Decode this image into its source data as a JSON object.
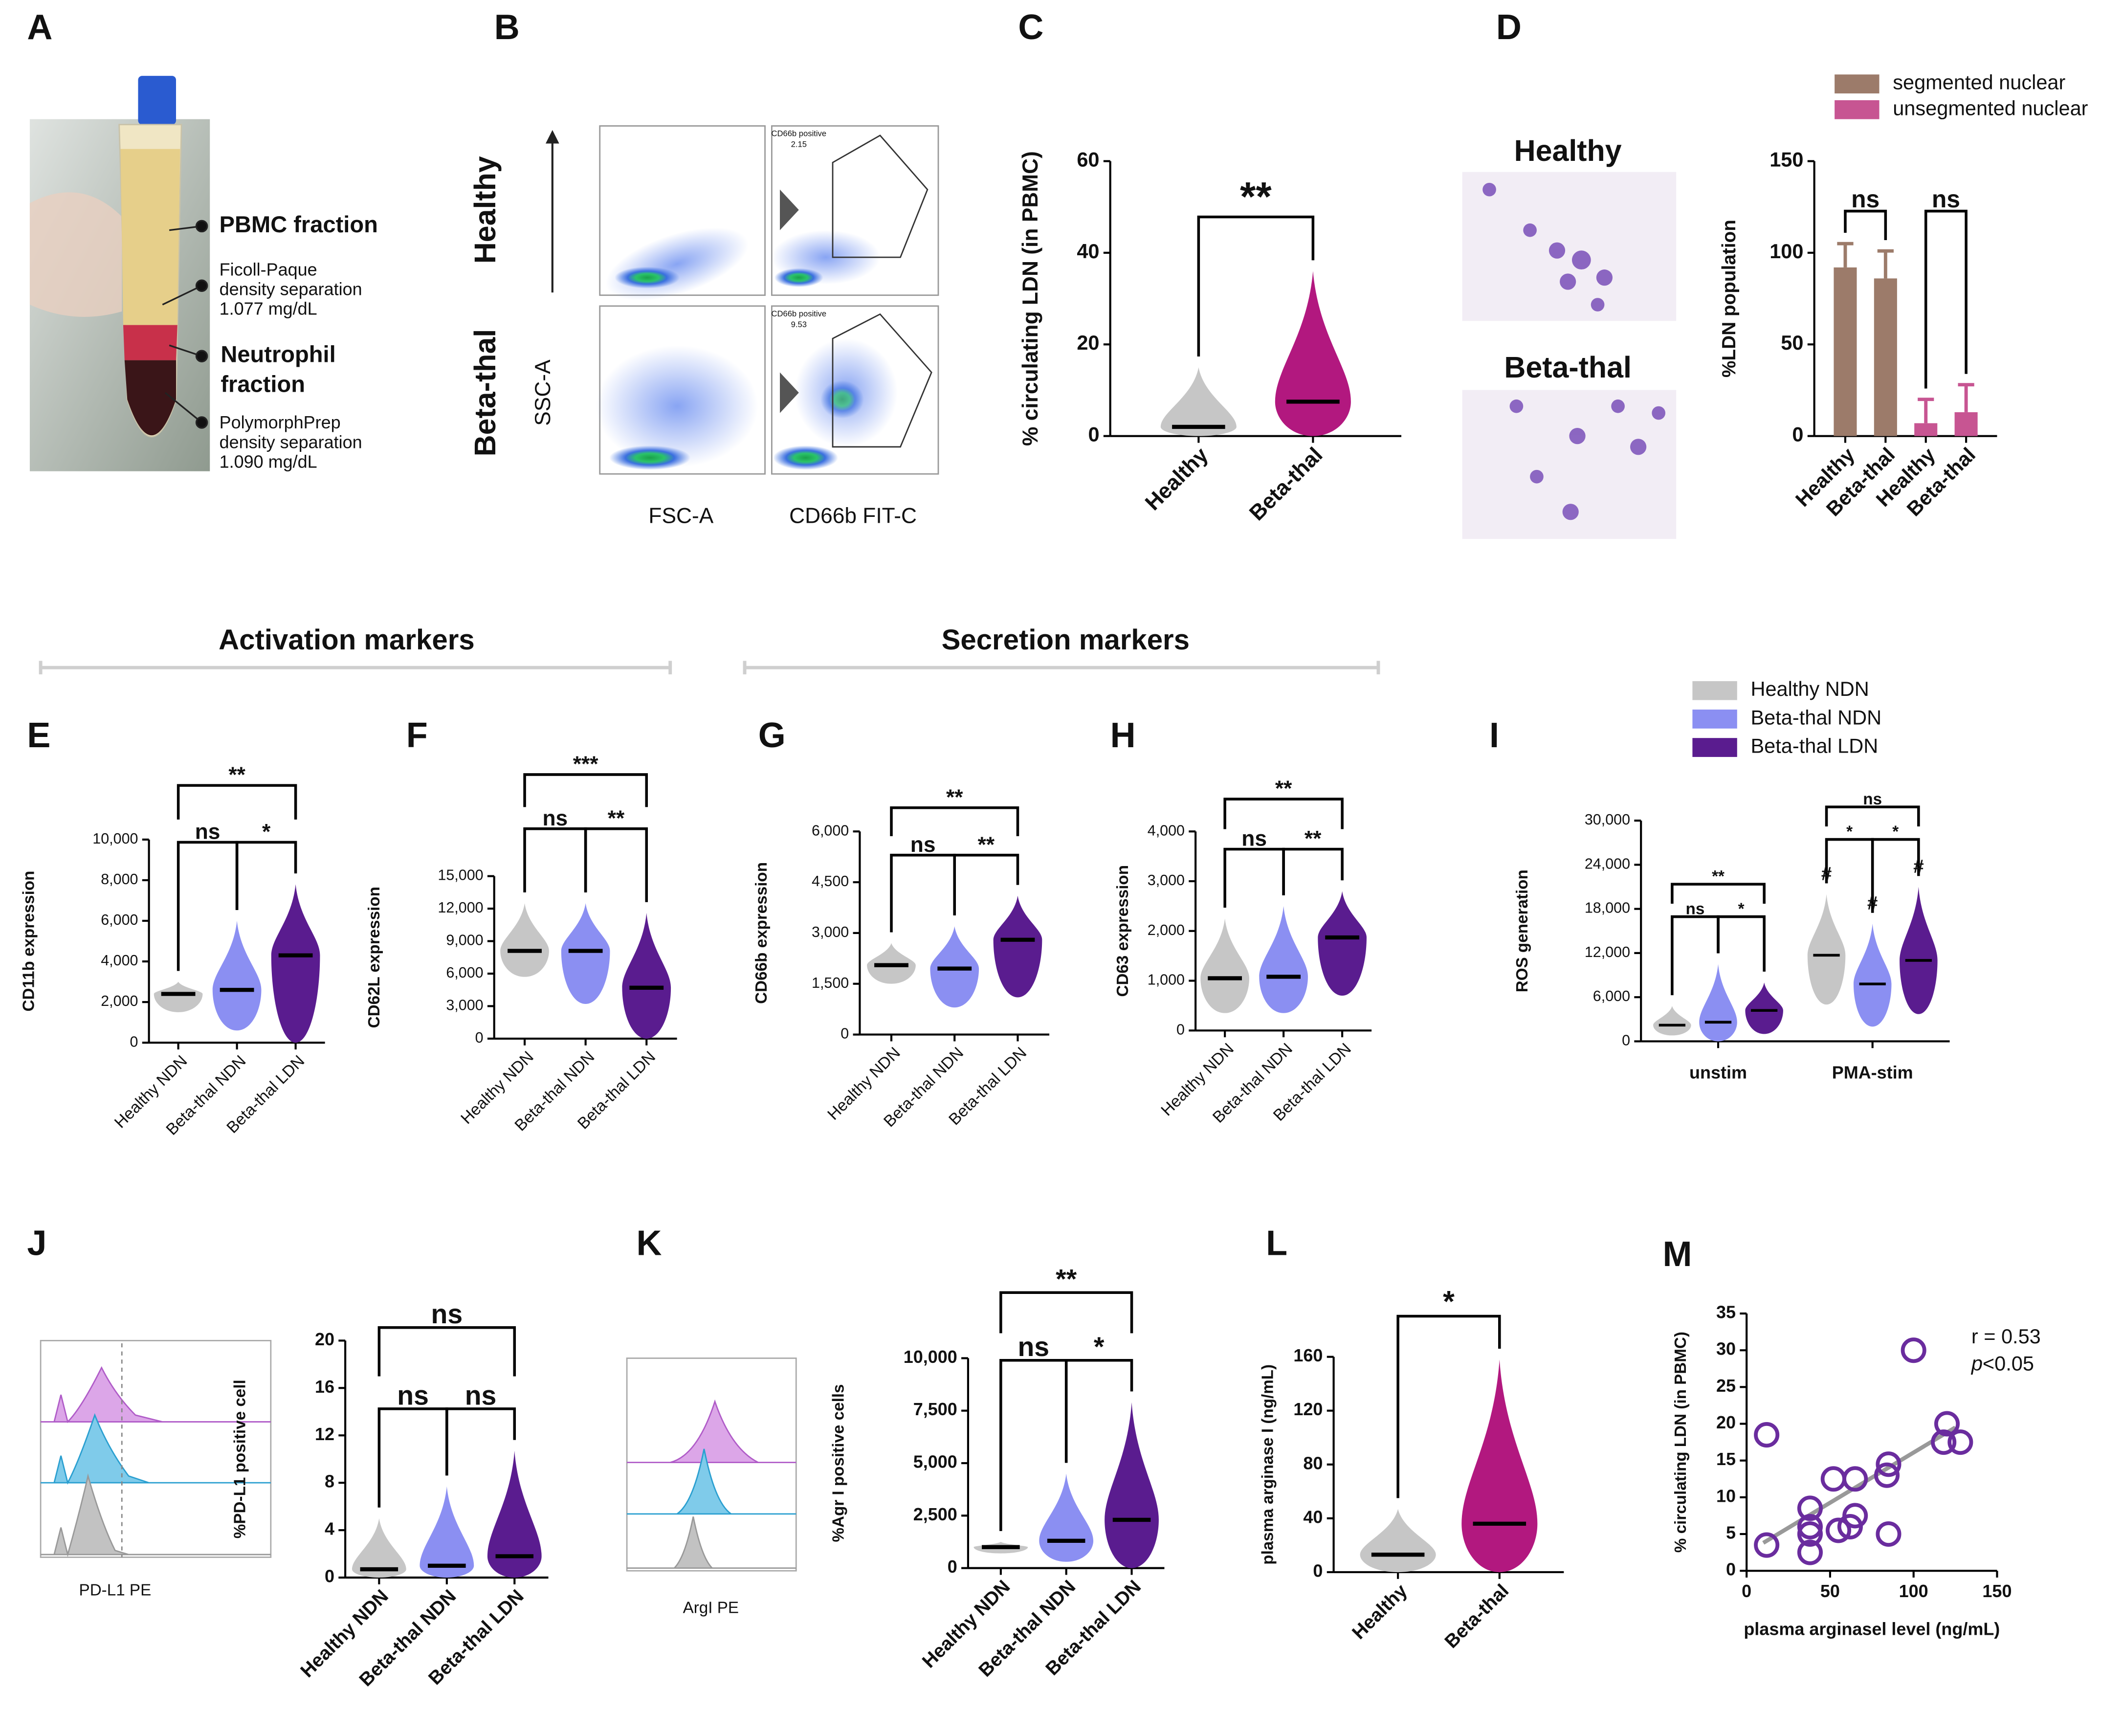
{
  "panel_labels": [
    "A",
    "B",
    "C",
    "D",
    "E",
    "F",
    "G",
    "H",
    "I",
    "J",
    "K",
    "L",
    "M"
  ],
  "section_headers": [
    "Activation markers",
    "Secretion markers"
  ],
  "panel_a": {
    "pbmc": "PBMC fraction",
    "ficoll": [
      "Ficoll-Paque",
      "density separation",
      "1.077 mg/dL"
    ],
    "neutrophil": [
      "Neutrophil",
      "fraction"
    ],
    "polymorph": [
      "PolymorphPrep",
      "density separation",
      "1.090 mg/dL"
    ]
  },
  "panel_b": {
    "rows": [
      "Healthy",
      "Beta-thal"
    ],
    "y_label": "SSC-A",
    "x_labels": [
      "FSC-A",
      "CD66b FIT-C"
    ],
    "gates": [
      [
        "CD66b positive",
        2.15
      ],
      [
        "CD66b positive",
        9.53
      ]
    ]
  },
  "panel_d_images": [
    "Healthy",
    "Beta-thal"
  ],
  "panel_j_hist": "PD-L1 PE",
  "panel_k_hist": "ArgI PE",
  "chart_data": [
    {
      "type": "violin",
      "y_label": "% circulating LDN (in PBMC)",
      "categories": [
        "Healthy",
        "Beta-thal"
      ],
      "colors": [
        "#c6c6c6",
        "#b2187f"
      ],
      "median": [
        2,
        7.5
      ],
      "min": [
        0,
        0
      ],
      "max": [
        15,
        36
      ],
      "ylim": [
        0,
        60
      ],
      "yticks": [
        0,
        20,
        40,
        60
      ],
      "annotations": [
        {
          "label": "**",
          "between": [
            0,
            1
          ]
        }
      ]
    },
    {
      "type": "bar",
      "y_label": "%LDN population",
      "categories": [
        "Healthy",
        "Beta-thal",
        "Healthy",
        "Beta-thal"
      ],
      "series": [
        {
          "name": "segmented nuclear",
          "color": "#9c7b6a",
          "values": [
            92,
            86,
            null,
            null
          ],
          "errors": [
            13,
            15,
            null,
            null
          ]
        },
        {
          "name": "unsegmented nuclear",
          "color": "#c75592",
          "values": [
            null,
            null,
            7,
            13
          ],
          "errors": [
            null,
            null,
            13,
            15
          ]
        }
      ],
      "ylim": [
        0,
        150
      ],
      "yticks": [
        0,
        50,
        100,
        150
      ],
      "annotations": [
        {
          "label": "ns",
          "between": [
            0,
            1
          ]
        },
        {
          "label": "ns",
          "between": [
            2,
            3
          ]
        }
      ]
    },
    {
      "type": "violin",
      "y_label": "CD11b expression",
      "categories": [
        "Healthy NDN",
        "Beta-thal NDN",
        "Beta-thal LDN"
      ],
      "colors": [
        "#c6c6c6",
        "#8b8ff2",
        "#5a1c8f"
      ],
      "median": [
        2400,
        2600,
        4300
      ],
      "min": [
        1500,
        600,
        0
      ],
      "max": [
        3000,
        6000,
        7800
      ],
      "ylim": [
        0,
        10000
      ],
      "yticks": [
        0,
        {
          "value": 2000,
          "label": "2,000"
        },
        {
          "value": 4000,
          "label": "4,000"
        },
        {
          "value": 6000,
          "label": "6,000"
        },
        {
          "value": 8000,
          "label": "8,000"
        },
        {
          "value": 10000,
          "label": "10,000"
        }
      ],
      "annotations": [
        {
          "label": "ns",
          "between": [
            0,
            1
          ]
        },
        {
          "label": "*",
          "between": [
            1,
            2
          ]
        },
        {
          "label": "**",
          "between": [
            0,
            2
          ]
        }
      ]
    },
    {
      "type": "violin",
      "y_label": "CD62L expression",
      "categories": [
        "Healthy NDN",
        "Beta-thal NDN",
        "Beta-thal LDN"
      ],
      "colors": [
        "#c6c6c6",
        "#8b8ff2",
        "#5a1c8f"
      ],
      "median": [
        8100,
        8100,
        4700
      ],
      "min": [
        5700,
        3200,
        0
      ],
      "max": [
        12500,
        12500,
        11600
      ],
      "ylim": [
        0,
        15000
      ],
      "yticks": [
        0,
        {
          "value": 3000,
          "label": "3,000"
        },
        {
          "value": 6000,
          "label": "6,000"
        },
        {
          "value": 9000,
          "label": "9,000"
        },
        {
          "value": 12000,
          "label": "12,000"
        },
        {
          "value": 15000,
          "label": "15,000"
        }
      ],
      "annotations": [
        {
          "label": "ns",
          "between": [
            0,
            1
          ]
        },
        {
          "label": "**",
          "between": [
            1,
            2
          ]
        },
        {
          "label": "***",
          "between": [
            0,
            2
          ]
        }
      ]
    },
    {
      "type": "violin",
      "y_label": "CD66b expression",
      "categories": [
        "Healthy NDN",
        "Beta-thal NDN",
        "Beta-thal LDN"
      ],
      "colors": [
        "#c6c6c6",
        "#8b8ff2",
        "#5a1c8f"
      ],
      "median": [
        2050,
        1950,
        2800
      ],
      "min": [
        1500,
        800,
        1100
      ],
      "max": [
        2700,
        3200,
        4100
      ],
      "ylim": [
        0,
        6000
      ],
      "yticks": [
        0,
        {
          "value": 1500,
          "label": "1,500"
        },
        {
          "value": 3000,
          "label": "3,000"
        },
        {
          "value": 4500,
          "label": "4,500"
        },
        {
          "value": 6000,
          "label": "6,000"
        }
      ],
      "annotations": [
        {
          "label": "ns",
          "between": [
            0,
            1
          ]
        },
        {
          "label": "**",
          "between": [
            1,
            2
          ]
        },
        {
          "label": "**",
          "between": [
            0,
            2
          ]
        }
      ]
    },
    {
      "type": "violin",
      "y_label": "CD63 expression",
      "categories": [
        "Healthy NDN",
        "Beta-thal NDN",
        "Beta-thal LDN"
      ],
      "colors": [
        "#c6c6c6",
        "#8b8ff2",
        "#5a1c8f"
      ],
      "median": [
        1050,
        1080,
        1870
      ],
      "min": [
        350,
        350,
        700
      ],
      "max": [
        2250,
        2500,
        2800
      ],
      "ylim": [
        0,
        4000
      ],
      "yticks": [
        0,
        {
          "value": 1000,
          "label": "1,000"
        },
        {
          "value": 2000,
          "label": "2,000"
        },
        {
          "value": 3000,
          "label": "3,000"
        },
        {
          "value": 4000,
          "label": "4,000"
        }
      ],
      "annotations": [
        {
          "label": "ns",
          "between": [
            0,
            1
          ]
        },
        {
          "label": "**",
          "between": [
            1,
            2
          ]
        },
        {
          "label": "**",
          "between": [
            0,
            2
          ]
        }
      ]
    },
    {
      "type": "violin",
      "y_label": "ROS generation",
      "categories": [
        "unstim",
        "PMA-stim"
      ],
      "series": [
        {
          "name": "Healthy NDN",
          "color": "#c6c6c6",
          "median": [
            2200,
            11700
          ],
          "min": [
            800,
            5000
          ],
          "max": [
            4800,
            20000
          ]
        },
        {
          "name": "Beta-thal NDN",
          "color": "#8b8ff2",
          "median": [
            2600,
            7800
          ],
          "min": [
            0,
            2000
          ],
          "max": [
            10500,
            16000
          ]
        },
        {
          "name": "Beta-thal LDN",
          "color": "#5a1c8f",
          "median": [
            4200,
            11000
          ],
          "min": [
            1000,
            3700
          ],
          "max": [
            8000,
            21000
          ]
        }
      ],
      "ylim": [
        0,
        30000
      ],
      "yticks": [
        0,
        {
          "value": 6000,
          "label": "6,000"
        },
        {
          "value": 12000,
          "label": "12,000"
        },
        {
          "value": 18000,
          "label": "18,000"
        },
        {
          "value": 24000,
          "label": "24,000"
        },
        {
          "value": 30000,
          "label": "30,000"
        }
      ],
      "annotations": [
        {
          "label": "ns",
          "group": 0,
          "between": [
            0,
            1
          ]
        },
        {
          "label": "*",
          "group": 0,
          "between": [
            1,
            2
          ]
        },
        {
          "label": "**",
          "group": 0,
          "between": [
            0,
            2
          ]
        },
        {
          "label": "*",
          "group": 1,
          "between": [
            0,
            1
          ]
        },
        {
          "label": "*",
          "group": 1,
          "between": [
            1,
            2
          ]
        },
        {
          "label": "ns",
          "group": 1,
          "between": [
            0,
            2
          ]
        }
      ],
      "marks": [
        {
          "label": "#",
          "group": 1,
          "series": 0
        },
        {
          "label": "#",
          "group": 1,
          "series": 1
        },
        {
          "label": "#",
          "group": 1,
          "series": 2
        }
      ]
    },
    {
      "type": "violin",
      "y_label": "%PD-L1 positive cell",
      "categories": [
        "Healthy NDN",
        "Beta-thal NDN",
        "Beta-thal LDN"
      ],
      "colors": [
        "#c6c6c6",
        "#8b8ff2",
        "#5a1c8f"
      ],
      "median": [
        0.7,
        1,
        1.8
      ],
      "min": [
        0,
        0,
        0
      ],
      "max": [
        5,
        7.7,
        10.7
      ],
      "ylim": [
        0,
        20
      ],
      "yticks": [
        0,
        4,
        8,
        12,
        16,
        20
      ],
      "annotations": [
        {
          "label": "ns",
          "between": [
            0,
            1
          ]
        },
        {
          "label": "ns",
          "between": [
            1,
            2
          ]
        },
        {
          "label": "ns",
          "between": [
            0,
            2
          ]
        }
      ]
    },
    {
      "type": "violin",
      "y_label": "%Agr I positive cells",
      "categories": [
        "Healthy NDN",
        "Beta-thal NDN",
        "Beta-thal LDN"
      ],
      "colors": [
        "#c6c6c6",
        "#8b8ff2",
        "#5a1c8f"
      ],
      "median": [
        1000,
        1300,
        2300
      ],
      "min": [
        700,
        300,
        0
      ],
      "max": [
        1250,
        4500,
        7900
      ],
      "ylim": [
        0,
        10000
      ],
      "yticks": [
        0,
        {
          "value": 2500,
          "label": "2,500"
        },
        {
          "value": 5000,
          "label": "5,000"
        },
        {
          "value": 7500,
          "label": "7,500"
        },
        {
          "value": 10000,
          "label": "10,000"
        }
      ],
      "annotations": [
        {
          "label": "ns",
          "between": [
            0,
            1
          ]
        },
        {
          "label": "*",
          "between": [
            1,
            2
          ]
        },
        {
          "label": "**",
          "between": [
            0,
            2
          ]
        }
      ]
    },
    {
      "type": "violin",
      "y_label": "plasma arginase I (ng/mL)",
      "categories": [
        "Healthy",
        "Beta-thal"
      ],
      "colors": [
        "#c6c6c6",
        "#b2187f"
      ],
      "median": [
        13,
        36
      ],
      "min": [
        0,
        0
      ],
      "max": [
        47,
        158
      ],
      "ylim": [
        0,
        160
      ],
      "yticks": [
        0,
        40,
        80,
        120,
        160
      ],
      "annotations": [
        {
          "label": "*",
          "between": [
            0,
            1
          ]
        }
      ]
    },
    {
      "type": "scatter",
      "x_label": "plasma arginasel level (ng/mL)",
      "y_label": "% circulating LDN (in PBMC)",
      "x": [
        12,
        12,
        38,
        38,
        38,
        38,
        52,
        55,
        62,
        65,
        65,
        85,
        85,
        100,
        118,
        120,
        128,
        84
      ],
      "y": [
        3.5,
        18.5,
        2.5,
        5,
        8.5,
        6,
        12.5,
        5.5,
        6,
        12.5,
        7.5,
        5,
        14.5,
        30,
        17.5,
        20,
        17.5,
        13
      ],
      "color": "#6a2c9e",
      "xlim": [
        0,
        150
      ],
      "ylim": [
        0,
        35
      ],
      "xticks": [
        0,
        50,
        100,
        150
      ],
      "yticks": [
        0,
        5,
        10,
        15,
        20,
        25,
        30,
        35
      ],
      "fit": {
        "x": [
          10,
          125
        ],
        "y": [
          3.8,
          19.5
        ]
      },
      "stats": {
        "r_text": "r = 0.53",
        "p_symbol": "p",
        "p_text": "<0.05"
      }
    }
  ]
}
